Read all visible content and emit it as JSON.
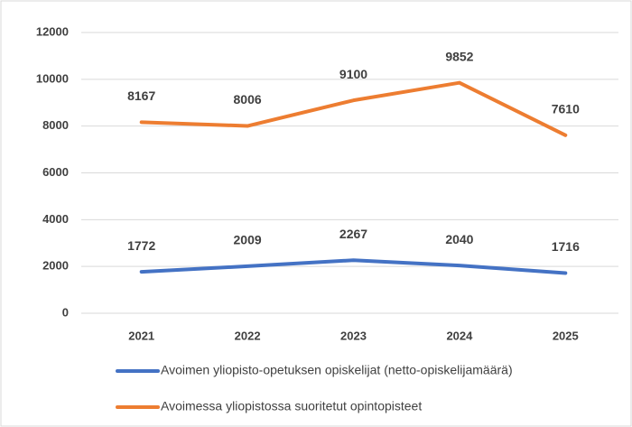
{
  "chart_data": {
    "type": "line",
    "categories": [
      "2021",
      "2022",
      "2023",
      "2024",
      "2025"
    ],
    "series": [
      {
        "name": "Avoimen yliopisto-opetuksen opiskelijat (netto-opiskelijamäärä)",
        "color": "#4472c4",
        "values": [
          1772,
          2009,
          2267,
          2040,
          1716
        ]
      },
      {
        "name": "Avoimessa yliopistossa suoritetut opintopisteet",
        "color": "#ed7d31",
        "values": [
          8167,
          8006,
          9100,
          9852,
          7610
        ]
      }
    ],
    "ylim": [
      0,
      12000
    ],
    "yticks": [
      0,
      2000,
      4000,
      6000,
      8000,
      10000,
      12000
    ],
    "grid": true,
    "legend": "bottom"
  }
}
